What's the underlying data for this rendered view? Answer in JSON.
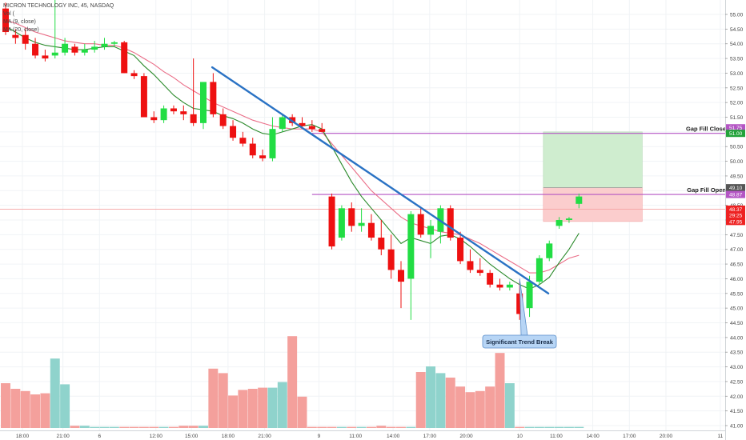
{
  "legend": {
    "symbol": "MICRON TECHNOLOGY INC, 45, NASDAQ",
    "vol": "Vol (",
    "ma1": "MA (9, close)",
    "ma2": "MA (20, close)"
  },
  "chart_data": {
    "type": "candlestick",
    "title": "MICRON TECHNOLOGY INC, 45, NASDAQ",
    "interval": "45",
    "ylim": [
      41.0,
      55.3
    ],
    "y_ticks": [
      "55.00",
      "54.50",
      "54.00",
      "53.50",
      "53.00",
      "52.50",
      "52.00",
      "51.50",
      "51.00",
      "50.50",
      "50.00",
      "49.50",
      "49.00",
      "48.50",
      "48.00",
      "47.50",
      "47.00",
      "46.50",
      "46.00",
      "45.50",
      "45.00",
      "44.50",
      "44.00",
      "43.50",
      "43.00",
      "42.50",
      "42.00",
      "41.50",
      "41.00"
    ],
    "x_ticks": [
      {
        "label": "18:00",
        "i": 1.7
      },
      {
        "label": "21:00",
        "i": 5.8
      },
      {
        "label": "6",
        "i": 9.5
      },
      {
        "label": "12:00",
        "i": 15.2
      },
      {
        "label": "15:00",
        "i": 18.8
      },
      {
        "label": "18:00",
        "i": 22.5
      },
      {
        "label": "21:00",
        "i": 26.2
      },
      {
        "label": "9",
        "i": 31.7
      },
      {
        "label": "11:00",
        "i": 35.4
      },
      {
        "label": "14:00",
        "i": 39.2
      },
      {
        "label": "17:00",
        "i": 42.9
      },
      {
        "label": "20:00",
        "i": 46.6
      },
      {
        "label": "10",
        "i": 52.0
      },
      {
        "label": "11:00",
        "i": 55.7
      },
      {
        "label": "14:00",
        "i": 59.4
      },
      {
        "label": "17:00",
        "i": 63.1
      },
      {
        "label": "20:00",
        "i": 66.8
      },
      {
        "label": "11",
        "i": 72.3
      }
    ],
    "candles": [
      {
        "o": 55.2,
        "h": 55.4,
        "l": 54.3,
        "c": 54.4
      },
      {
        "o": 54.3,
        "h": 54.5,
        "l": 54.0,
        "c": 54.2
      },
      {
        "o": 54.3,
        "h": 54.5,
        "l": 53.8,
        "c": 54.0
      },
      {
        "o": 54.0,
        "h": 54.2,
        "l": 53.5,
        "c": 53.6
      },
      {
        "o": 53.6,
        "h": 53.8,
        "l": 53.4,
        "c": 53.5
      },
      {
        "o": 53.6,
        "h": 55.5,
        "l": 53.5,
        "c": 53.7
      },
      {
        "o": 53.7,
        "h": 54.2,
        "l": 53.6,
        "c": 54.0
      },
      {
        "o": 53.9,
        "h": 54.0,
        "l": 53.6,
        "c": 53.7
      },
      {
        "o": 53.7,
        "h": 54.0,
        "l": 53.6,
        "c": 53.8
      },
      {
        "o": 53.8,
        "h": 54.1,
        "l": 53.7,
        "c": 53.9
      },
      {
        "o": 53.9,
        "h": 54.2,
        "l": 53.8,
        "c": 54.0
      },
      {
        "o": 54.0,
        "h": 54.1,
        "l": 53.9,
        "c": 54.05
      },
      {
        "o": 54.05,
        "h": 54.1,
        "l": 53.0,
        "c": 53.0
      },
      {
        "o": 53.0,
        "h": 53.1,
        "l": 52.8,
        "c": 52.9
      },
      {
        "o": 52.9,
        "h": 53.0,
        "l": 51.5,
        "c": 51.5
      },
      {
        "o": 51.5,
        "h": 51.7,
        "l": 51.3,
        "c": 51.4
      },
      {
        "o": 51.4,
        "h": 51.9,
        "l": 51.3,
        "c": 51.8
      },
      {
        "o": 51.8,
        "h": 51.9,
        "l": 51.6,
        "c": 51.7
      },
      {
        "o": 51.7,
        "h": 51.9,
        "l": 51.4,
        "c": 51.6
      },
      {
        "o": 51.6,
        "h": 53.5,
        "l": 51.2,
        "c": 51.3
      },
      {
        "o": 51.3,
        "h": 52.7,
        "l": 51.1,
        "c": 52.7
      },
      {
        "o": 52.7,
        "h": 53.0,
        "l": 51.5,
        "c": 51.6
      },
      {
        "o": 51.6,
        "h": 51.8,
        "l": 51.1,
        "c": 51.2
      },
      {
        "o": 51.2,
        "h": 51.4,
        "l": 50.7,
        "c": 50.8
      },
      {
        "o": 50.8,
        "h": 51.0,
        "l": 50.5,
        "c": 50.6
      },
      {
        "o": 50.6,
        "h": 50.8,
        "l": 50.1,
        "c": 50.2
      },
      {
        "o": 50.2,
        "h": 50.4,
        "l": 50.0,
        "c": 50.1
      },
      {
        "o": 50.1,
        "h": 51.5,
        "l": 50.0,
        "c": 51.1
      },
      {
        "o": 51.1,
        "h": 51.6,
        "l": 51.0,
        "c": 51.5
      },
      {
        "o": 51.5,
        "h": 51.6,
        "l": 51.2,
        "c": 51.3
      },
      {
        "o": 51.3,
        "h": 51.5,
        "l": 51.1,
        "c": 51.2
      },
      {
        "o": 51.2,
        "h": 51.4,
        "l": 51.0,
        "c": 51.1
      },
      {
        "o": 51.1,
        "h": 51.3,
        "l": 51.0,
        "c": 51.0
      },
      {
        "o": 48.8,
        "h": 48.9,
        "l": 47.0,
        "c": 47.1
      },
      {
        "o": 47.4,
        "h": 48.5,
        "l": 47.3,
        "c": 48.4
      },
      {
        "o": 48.4,
        "h": 48.6,
        "l": 47.6,
        "c": 47.8
      },
      {
        "o": 47.8,
        "h": 48.4,
        "l": 47.6,
        "c": 47.9
      },
      {
        "o": 47.9,
        "h": 48.2,
        "l": 47.3,
        "c": 47.4
      },
      {
        "o": 47.4,
        "h": 48.0,
        "l": 46.8,
        "c": 47.0
      },
      {
        "o": 47.0,
        "h": 47.5,
        "l": 46.0,
        "c": 46.3
      },
      {
        "o": 46.3,
        "h": 46.6,
        "l": 45.0,
        "c": 45.9
      },
      {
        "o": 46.0,
        "h": 48.3,
        "l": 44.6,
        "c": 48.2
      },
      {
        "o": 48.2,
        "h": 48.4,
        "l": 47.4,
        "c": 47.5
      },
      {
        "o": 47.5,
        "h": 48.0,
        "l": 46.7,
        "c": 47.8
      },
      {
        "o": 47.6,
        "h": 48.5,
        "l": 47.2,
        "c": 48.4
      },
      {
        "o": 48.4,
        "h": 48.5,
        "l": 47.3,
        "c": 47.4
      },
      {
        "o": 47.4,
        "h": 47.6,
        "l": 46.5,
        "c": 46.6
      },
      {
        "o": 46.6,
        "h": 47.0,
        "l": 46.2,
        "c": 46.3
      },
      {
        "o": 46.3,
        "h": 46.7,
        "l": 46.1,
        "c": 46.2
      },
      {
        "o": 46.2,
        "h": 46.3,
        "l": 45.7,
        "c": 45.8
      },
      {
        "o": 45.8,
        "h": 46.0,
        "l": 45.6,
        "c": 45.7
      },
      {
        "o": 45.7,
        "h": 45.9,
        "l": 45.6,
        "c": 45.8
      },
      {
        "o": 45.5,
        "h": 45.9,
        "l": 44.6,
        "c": 44.8
      },
      {
        "o": 45.0,
        "h": 46.1,
        "l": 44.7,
        "c": 45.9
      },
      {
        "o": 45.9,
        "h": 46.8,
        "l": 45.8,
        "c": 46.7
      },
      {
        "o": 46.7,
        "h": 47.3,
        "l": 46.6,
        "c": 47.2
      },
      {
        "o": 47.8,
        "h": 48.1,
        "l": 47.7,
        "c": 48.0
      },
      {
        "o": 48.0,
        "h": 48.1,
        "l": 47.9,
        "c": 48.05
      },
      {
        "o": 48.55,
        "h": 48.9,
        "l": 48.4,
        "c": 48.8
      }
    ],
    "volume": [
      0.4,
      0.35,
      0.33,
      0.3,
      0.31,
      0.62,
      0.39,
      0.02,
      0.02,
      0.01,
      0.01,
      0.01,
      0.01,
      0.01,
      0.01,
      0.01,
      0.01,
      0.01,
      0.02,
      0.02,
      0.02,
      0.53,
      0.49,
      0.29,
      0.34,
      0.35,
      0.36,
      0.36,
      0.41,
      0.82,
      0.28,
      0.01,
      0.01,
      0.01,
      0.01,
      0.01,
      0.01,
      0.01,
      0.02,
      0.01,
      0.01,
      0.01,
      0.5,
      0.55,
      0.49,
      0.45,
      0.37,
      0.32,
      0.33,
      0.37,
      0.67,
      0.4,
      0.01,
      0.01,
      0.01,
      0.01,
      0.01,
      0.01,
      0.01
    ],
    "ma_fast": [
      54.6,
      54.4,
      54.2,
      54.05,
      53.95,
      53.9,
      53.85,
      53.8,
      53.8,
      53.85,
      53.9,
      53.9,
      53.75,
      53.6,
      53.25,
      52.95,
      52.6,
      52.25,
      52.0,
      51.8,
      51.75,
      51.7,
      51.55,
      51.45,
      51.3,
      51.1,
      50.95,
      50.9,
      51.0,
      51.1,
      51.2,
      51.25,
      51.1,
      50.5,
      49.9,
      49.3,
      48.8,
      48.4,
      48.0,
      47.6,
      47.2,
      47.4,
      47.3,
      47.2,
      47.45,
      47.5,
      47.35,
      47.1,
      46.8,
      46.5,
      46.25,
      46.0,
      45.8,
      45.65,
      45.8,
      46.05,
      46.55,
      47.0,
      47.55
    ],
    "ma_slow": [
      54.8,
      54.7,
      54.55,
      54.4,
      54.3,
      54.2,
      54.1,
      54.05,
      54.0,
      54.0,
      53.95,
      53.95,
      53.85,
      53.7,
      53.5,
      53.3,
      53.05,
      52.85,
      52.6,
      52.4,
      52.2,
      52.0,
      51.85,
      51.7,
      51.55,
      51.4,
      51.3,
      51.2,
      51.15,
      51.1,
      51.1,
      51.1,
      51.0,
      50.6,
      50.2,
      49.8,
      49.4,
      49.0,
      48.7,
      48.4,
      48.1,
      47.9,
      47.8,
      47.7,
      47.6,
      47.55,
      47.5,
      47.35,
      47.2,
      47.0,
      46.8,
      46.6,
      46.4,
      46.2,
      46.2,
      46.3,
      46.5,
      46.7,
      46.8
    ],
    "trendline": {
      "start": {
        "i": 20.9,
        "price": 53.2
      },
      "end": {
        "i": 54.9,
        "price": 45.5
      }
    },
    "levels": [
      {
        "name": "Gap Fill Close",
        "price": 50.95,
        "color": "#b455c4",
        "text": "Gap Fill Close"
      },
      {
        "name": "Gap Fill Open",
        "price": 48.87,
        "color": "#b455c4",
        "text": "Gap Fill Open"
      },
      {
        "name": "last-price",
        "price": 48.37,
        "color": "#f08080",
        "text": ""
      }
    ],
    "price_tags": [
      {
        "text": "51.75",
        "price": 51.14,
        "color": "#b455c4"
      },
      {
        "text": "51.00",
        "price": 50.95,
        "color": "#22a33a"
      },
      {
        "text": "49.10",
        "price": 49.1,
        "color": "#555555"
      },
      {
        "text": "48.87",
        "price": 48.87,
        "color": "#b455c4"
      },
      {
        "text": "48.37",
        "price": 48.37,
        "color": "#ee2222"
      },
      {
        "text": "29:25",
        "price": 48.17,
        "color": "#ee2222"
      },
      {
        "text": "47.95",
        "price": 47.95,
        "color": "#ee2222"
      }
    ],
    "position": {
      "i_start": 54.4,
      "i_end": 64.4,
      "entry": 49.1,
      "target": 51.0,
      "stop": 47.95
    },
    "annotation": {
      "text": "Significant Trend Break",
      "i": 52.0,
      "price": 46.0
    }
  },
  "colors": {
    "up": "#22dd44",
    "down": "#ee1111",
    "vol_up": "#8fd3cc",
    "vol_down": "#f4a09c",
    "ma_fast": "#2b8a2b",
    "ma_slow": "#ea6d87",
    "trend": "#2a72c4",
    "level": "#b455c4",
    "last_line": "#f5a3a3",
    "target_fill": "#cfedcf",
    "stop_fill": "#fbcdcd",
    "grid": "#f0f3f6",
    "axis_text": "#444444",
    "callout_fill": "#b7d5f5",
    "callout_border": "#5b8fca"
  }
}
